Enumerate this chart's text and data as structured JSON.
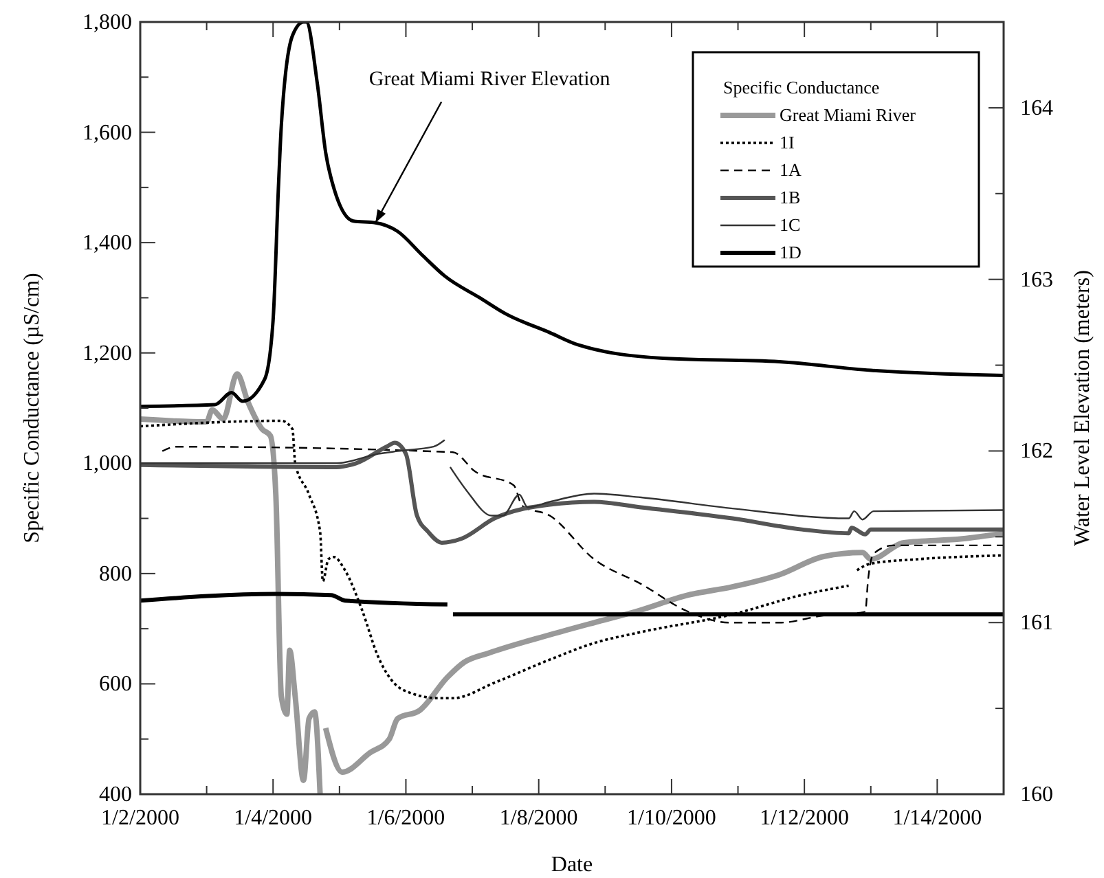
{
  "chart_data": {
    "type": "line",
    "xlabel": "Date",
    "ylabel": "Specific Conductance (µS/cm)",
    "y2label": "Water Level Elevation (meters)",
    "legend_title": "Specific Conductance",
    "legend": "top right",
    "grid": false,
    "xlim": [
      "2000-01-02",
      "2000-01-15"
    ],
    "xticks": [
      {
        "value": "2000-01-02",
        "label": "1/2/2000"
      },
      {
        "value": "2000-01-03",
        "label": null
      },
      {
        "value": "2000-01-04",
        "label": "1/4/2000"
      },
      {
        "value": "2000-01-05",
        "label": null
      },
      {
        "value": "2000-01-06",
        "label": "1/6/2000"
      },
      {
        "value": "2000-01-07",
        "label": null
      },
      {
        "value": "2000-01-08",
        "label": "1/8/2000"
      },
      {
        "value": "2000-01-09",
        "label": null
      },
      {
        "value": "2000-01-10",
        "label": "1/10/2000"
      },
      {
        "value": "2000-01-11",
        "label": null
      },
      {
        "value": "2000-01-12",
        "label": "1/12/2000"
      },
      {
        "value": "2000-01-13",
        "label": null
      },
      {
        "value": "2000-01-14",
        "label": "1/14/2000"
      }
    ],
    "ylim": [
      400,
      1800
    ],
    "yticks": [
      400,
      {
        "value": 500,
        "label": null
      },
      600,
      {
        "value": 700,
        "label": null
      },
      800,
      {
        "value": 900,
        "label": null
      },
      {
        "value": 1000,
        "label": "1,000"
      },
      {
        "value": 1100,
        "label": null
      },
      {
        "value": 1200,
        "label": "1,200"
      },
      {
        "value": 1300,
        "label": null
      },
      {
        "value": 1400,
        "label": "1,400"
      },
      {
        "value": 1500,
        "label": null
      },
      {
        "value": 1600,
        "label": "1,600"
      },
      {
        "value": 1700,
        "label": null
      },
      {
        "value": 1800,
        "label": "1,800"
      }
    ],
    "y2lim": [
      160,
      164.5
    ],
    "y2ticks": [
      160,
      {
        "value": 160.5,
        "label": null
      },
      161,
      {
        "value": 161.5,
        "label": null
      },
      162,
      {
        "value": 162.5,
        "label": null
      },
      163,
      {
        "value": 163.5,
        "label": null
      },
      164
    ],
    "annotations": [
      {
        "text": "Great Miami River Elevation",
        "x": "2000-01-05T13:00",
        "y": 1436
      }
    ],
    "series": [
      {
        "name": "Great Miami River",
        "color": "#999999",
        "line_style": "solid",
        "x": [
          "2000-01-02T00:00",
          "2000-01-03T00:00",
          "2000-01-03T02:00",
          "2000-01-03T06:00",
          "2000-01-03T11:00",
          "2000-01-03T15:00",
          "2000-01-03T20:00",
          "2000-01-03T23:00",
          "2000-01-04T01:00",
          "2000-01-04T03:00",
          "2000-01-04T05:00",
          "2000-01-04T06:00",
          "2000-01-04T08:00",
          "2000-01-04T11:00",
          "2000-01-04T13:00",
          "2000-01-04T15:00",
          "2000-01-04T17:00",
          "2000-01-04T18:00",
          "2000-01-04T19:00",
          "2000-01-05T01:00",
          "2000-01-05T11:00",
          "2000-01-05T18:00",
          "2000-01-05T21:00",
          "2000-01-06T05:00",
          "2000-01-06T15:00",
          "2000-01-06T21:00",
          "2000-01-07T06:00",
          "2000-01-08T04:00",
          "2000-01-08T20:00",
          "2000-01-09T11:00",
          "2000-01-10T06:00",
          "2000-01-10T22:00",
          "2000-01-11T15:00",
          "2000-01-12T07:00",
          "2000-01-12T21:00",
          "2000-01-13T00:00",
          "2000-01-13T12:00",
          "2000-01-14T09:00",
          "2000-01-15T00:00"
        ],
        "values": [
          1080,
          1075,
          1097,
          1080,
          1162,
          1110,
          1062,
          1050,
          943,
          577,
          545,
          661,
          577,
          425,
          537,
          549,
          400,
          null,
          520,
          440,
          475,
          500,
          537,
          552,
          612,
          639,
          656,
          689,
          711,
          731,
          761,
          776,
          798,
          831,
          838,
          826,
          856,
          863,
          873
        ]
      },
      {
        "name": "1I",
        "color": "#000000",
        "line_style": "dotted",
        "x": [
          "2000-01-02T00:00",
          "2000-01-04T03:00",
          "2000-01-04T07:00",
          "2000-01-04T08:00",
          "2000-01-04T13:00",
          "2000-01-04T17:00",
          "2000-01-04T18:00",
          "2000-01-04T20:00",
          "2000-01-04T22:00",
          "2000-01-05T02:00",
          "2000-01-05T08:00",
          "2000-01-05T14:00",
          "2000-01-05T23:00",
          "2000-01-06T12:00",
          "2000-01-06T17:00",
          "2000-01-07T08:00",
          "2000-01-08T04:00",
          "2000-01-08T20:00",
          "2000-01-09T13:00",
          "2000-01-10T22:00",
          "2000-01-11T23:00",
          "2000-01-12T16:00",
          "2000-01-12T18:00",
          "2000-01-12T19:00",
          "2000-01-13T00:00",
          "2000-01-13T17:00",
          "2000-01-15T00:00"
        ],
        "values": [
          1067,
          1077,
          1062,
          1000,
          943,
          876,
          786,
          826,
          830,
          806,
          736,
          649,
          589,
          574,
          574,
          602,
          644,
          674,
          694,
          726,
          761,
          778,
          null,
          806,
          818,
          826,
          833
        ]
      },
      {
        "name": "1A",
        "color": "#000000",
        "line_style": "dashed",
        "x": [
          "2000-01-02T08:00",
          "2000-01-02T13:00",
          "2000-01-06T17:00",
          "2000-01-07T01:00",
          "2000-01-07T15:00",
          "2000-01-07T18:00",
          "2000-01-08T04:00",
          "2000-01-08T20:00",
          "2000-01-09T13:00",
          "2000-01-10T06:00",
          "2000-01-10T21:00",
          "2000-01-11T15:00",
          "2000-01-12T07:00",
          "2000-01-12T20:00",
          "2000-01-12T22:00",
          "2000-01-12T23:00",
          "2000-01-13T01:00",
          "2000-01-13T08:00",
          "2000-01-15T00:00"
        ],
        "values": [
          1022,
          1030,
          1020,
          985,
          960,
          923,
          905,
          826,
          781,
          731,
          711,
          711,
          724,
          729,
          731,
          788,
          836,
          851,
          851
        ]
      },
      {
        "name": "1B",
        "color": "#555555",
        "line_style": "solid",
        "x": [
          "2000-01-02T00:00",
          "2000-01-04T23:00",
          "2000-01-05T06:00",
          "2000-01-05T17:00",
          "2000-01-05T20:00",
          "2000-01-06T00:00",
          "2000-01-06T04:00",
          "2000-01-06T08:00",
          "2000-01-06T13:00",
          "2000-01-06T20:00",
          "2000-01-07T08:00",
          "2000-01-08T04:00",
          "2000-01-08T20:00",
          "2000-01-09T13:00",
          "2000-01-10T22:00",
          "2000-01-11T23:00",
          "2000-01-12T16:00",
          "2000-01-12T17:00",
          "2000-01-12T22:00",
          "2000-01-13T00:00",
          "2000-01-15T00:00"
        ],
        "values": [
          997,
          993,
          1000,
          1030,
          1037,
          1017,
          905,
          876,
          856,
          863,
          900,
          925,
          930,
          920,
          900,
          880,
          873,
          883,
          871,
          880,
          880
        ]
      },
      {
        "name": "1C",
        "color": "#333333",
        "line_style": "solid",
        "x": [
          "2000-01-02T00:00",
          "2000-01-04T23:00",
          "2000-01-05T14:00",
          "2000-01-05T21:00",
          "2000-01-06T10:00",
          "2000-01-06T14:00",
          "2000-01-06T15:00",
          "2000-01-06T16:00",
          "2000-01-06T22:00",
          "2000-01-07T07:00",
          "2000-01-07T11:00",
          "2000-01-07T17:00",
          "2000-01-07T20:00",
          "2000-01-08T04:00",
          "2000-01-08T20:00",
          "2000-01-09T13:00",
          "2000-01-10T22:00",
          "2000-01-12T16:00",
          "2000-01-12T18:00",
          "2000-01-12T21:00",
          "2000-01-13T01:00",
          "2000-01-15T00:00"
        ],
        "values": [
          1000,
          1000,
          1017,
          1022,
          1030,
          1042,
          null,
          993,
          950,
          905,
          905,
          943,
          920,
          930,
          945,
          938,
          918,
          900,
          913,
          898,
          913,
          915
        ]
      },
      {
        "name": "1D",
        "color": "#000000",
        "line_style": "solid",
        "x": [
          "2000-01-02T00:00",
          "2000-01-04T01:00",
          "2000-01-04T21:00",
          "2000-01-05T02:00",
          "2000-01-06T15:00",
          "2000-01-06T16:00",
          "2000-01-06T17:00",
          "2000-01-15T00:00"
        ],
        "values": [
          751,
          763,
          761,
          751,
          744,
          null,
          726,
          726
        ]
      },
      {
        "color": "#000000",
        "line_style": "solid",
        "axis": "y2",
        "x": [
          "2000-01-02T00:00",
          "2000-01-03T03:00",
          "2000-01-03T09:00",
          "2000-01-03T13:00",
          "2000-01-03T21:00",
          "2000-01-04T00:00",
          "2000-01-04T02:00",
          "2000-01-04T03:00",
          "2000-01-04T07:00",
          "2000-01-04T11:00",
          "2000-01-04T12:00",
          "2000-01-04T16:00",
          "2000-01-04T19:00",
          "2000-01-04T22:00",
          "2000-01-05T05:00",
          "2000-01-05T13:00",
          "2000-01-05T21:00",
          "2000-01-06T06:00",
          "2000-01-06T14:00",
          "2000-01-07T03:00",
          "2000-01-07T12:00",
          "2000-01-08T04:00",
          "2000-01-08T14:00",
          "2000-01-09T21:00",
          "2000-01-11T15:00",
          "2000-01-13T00:00",
          "2000-01-15T00:00"
        ],
        "values": [
          162.26,
          162.27,
          162.34,
          162.29,
          162.42,
          162.76,
          163.56,
          163.9,
          164.42,
          164.5,
          164.5,
          164.14,
          163.74,
          163.53,
          163.34,
          163.33,
          163.28,
          163.14,
          163.02,
          162.89,
          162.8,
          162.69,
          162.62,
          162.54,
          162.52,
          162.47,
          162.44
        ]
      }
    ]
  }
}
